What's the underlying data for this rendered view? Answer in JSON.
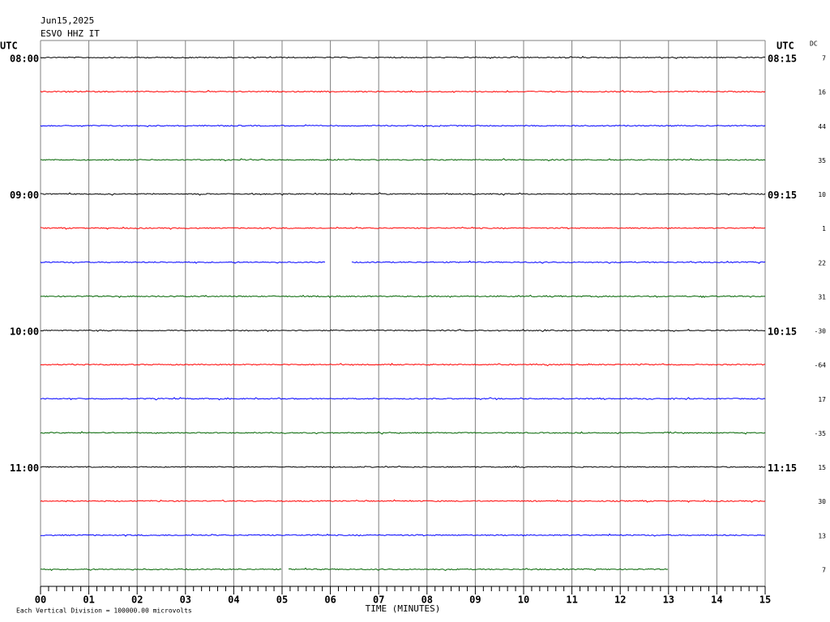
{
  "header": {
    "date": "Jun15,2025",
    "station": "ESVO HHZ IT"
  },
  "left_utc": "UTC",
  "right_utc": "UTC",
  "dc_label": "DC",
  "left_times": [
    "08:00",
    "09:00",
    "10:00",
    "11:00"
  ],
  "right_times": [
    "08:15",
    "09:15",
    "10:15",
    "11:15"
  ],
  "dc_values": [
    7,
    16,
    44,
    35,
    10,
    1,
    22,
    31,
    -30,
    -64,
    17,
    -35,
    15,
    30,
    13,
    7
  ],
  "trace_colors": [
    "#000000",
    "#ff0000",
    "#0000ff",
    "#006400"
  ],
  "x_axis": {
    "labels": [
      "00",
      "01",
      "02",
      "03",
      "04",
      "05",
      "06",
      "07",
      "08",
      "09",
      "10",
      "11",
      "12",
      "13",
      "14",
      "15"
    ],
    "title": "TIME (MINUTES)"
  },
  "footer": "Each Vertical Division = 100000.00 microvolts"
}
